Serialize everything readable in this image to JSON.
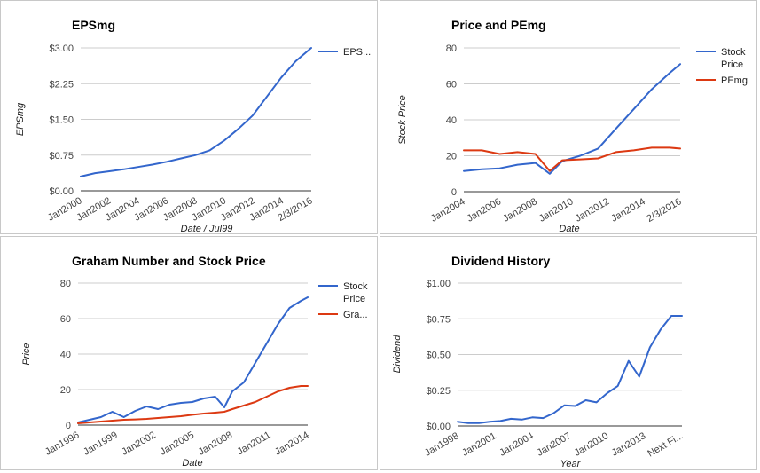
{
  "chart_data": [
    {
      "type": "line",
      "title": "EPSmg",
      "xlabel": "Date / Jul99",
      "ylabel": "EPSmg",
      "ylim": [
        0,
        3
      ],
      "xlim": [
        2000,
        2016.09
      ],
      "yticks": [
        "$0.00",
        "$0.75",
        "$1.50",
        "$2.25",
        "$3.00"
      ],
      "xticks": [
        "Jan2000",
        "Jan2002",
        "Jan2004",
        "Jan2006",
        "Jan2008",
        "Jan2010",
        "Jan2012",
        "Jan2014",
        "2/3/2016"
      ],
      "legend_position": "right",
      "grid": true,
      "series": [
        {
          "name": "EPS...",
          "color": "#3366cc",
          "x": [
            2000,
            2001,
            2002,
            2003,
            2004,
            2005,
            2006,
            2007,
            2008,
            2009,
            2010,
            2011,
            2012,
            2013,
            2014,
            2015,
            2016.09
          ],
          "y": [
            0.3,
            0.37,
            0.41,
            0.45,
            0.5,
            0.55,
            0.61,
            0.68,
            0.75,
            0.85,
            1.05,
            1.3,
            1.58,
            1.98,
            2.38,
            2.72,
            3.0
          ]
        }
      ]
    },
    {
      "type": "line",
      "title": "Price and PEmg",
      "xlabel": "Date",
      "ylabel": "Stock Price",
      "ylim": [
        0,
        80
      ],
      "xlim": [
        2004,
        2016.09
      ],
      "yticks": [
        "0",
        "20",
        "40",
        "60",
        "80"
      ],
      "xticks": [
        "Jan2004",
        "Jan2006",
        "Jan2008",
        "Jan2010",
        "Jan2012",
        "Jan2014",
        "2/3/2016"
      ],
      "legend_position": "right",
      "grid": true,
      "series": [
        {
          "name": "Stock Price",
          "color": "#3366cc",
          "x": [
            2004,
            2005,
            2006,
            2007,
            2008,
            2008.8,
            2009.5,
            2010.5,
            2011.5,
            2012.5,
            2013.5,
            2014.5,
            2015.5,
            2016.09
          ],
          "y": [
            11.5,
            12.5,
            13,
            15,
            16,
            10,
            17,
            20,
            24,
            35,
            46,
            57,
            66,
            71
          ]
        },
        {
          "name": "PEmg",
          "color": "#dc3912",
          "x": [
            2004,
            2005,
            2006,
            2007,
            2008,
            2008.8,
            2009.5,
            2010.5,
            2011.5,
            2012.5,
            2013.5,
            2014.5,
            2015.5,
            2016.09
          ],
          "y": [
            23,
            23,
            21,
            22,
            21,
            11.5,
            17.5,
            18,
            18.5,
            22,
            23,
            24.5,
            24.5,
            24
          ]
        }
      ]
    },
    {
      "type": "line",
      "title": "Graham Number and Stock Price",
      "xlabel": "Date",
      "ylabel": "Price",
      "ylim": [
        0,
        80
      ],
      "xlim": [
        1996,
        2016.09
      ],
      "yticks": [
        "0",
        "20",
        "40",
        "60",
        "80"
      ],
      "xticks": [
        "Jan1996",
        "Jan1999",
        "Jan2002",
        "Jan2005",
        "Jan2008",
        "Jan2011",
        "Jan2014"
      ],
      "legend_position": "right",
      "grid": true,
      "series": [
        {
          "name": "Stock Price",
          "color": "#3366cc",
          "x": [
            1996,
            1997,
            1998,
            1999,
            2000,
            2001,
            2002,
            2003,
            2004,
            2005,
            2006,
            2007,
            2008,
            2008.8,
            2009.5,
            2010.5,
            2011.5,
            2012.5,
            2013.5,
            2014.5,
            2015.5,
            2016.09
          ],
          "y": [
            1.5,
            3,
            4.5,
            7.5,
            4.5,
            8,
            10.5,
            9,
            11.5,
            12.5,
            13,
            15,
            16,
            10,
            19,
            24,
            35,
            46,
            57,
            66,
            70,
            72
          ]
        },
        {
          "name": "Gra...",
          "color": "#dc3912",
          "x": [
            1996,
            1997,
            1998,
            1999,
            2000,
            2001,
            2002,
            2003,
            2004,
            2005,
            2006,
            2007,
            2008,
            2008.8,
            2009.5,
            2010.5,
            2011.5,
            2012.5,
            2013.5,
            2014.5,
            2015.5,
            2016.09
          ],
          "y": [
            1,
            1.5,
            2,
            2.5,
            3,
            3.2,
            3.5,
            4,
            4.5,
            5,
            5.8,
            6.5,
            7,
            7.5,
            9,
            11,
            13,
            16,
            19,
            21,
            22,
            22
          ]
        }
      ]
    },
    {
      "type": "line",
      "title": "Dividend History",
      "xlabel": "Year",
      "ylabel": "Dividend",
      "ylim": [
        0,
        1
      ],
      "xlim": [
        1996,
        2017
      ],
      "yticks": [
        "$0.00",
        "$0.25",
        "$0.50",
        "$0.75",
        "$1.00"
      ],
      "xticks": [
        "Jan1998",
        "Jan2001",
        "Jan2004",
        "Jan2007",
        "Jan2010",
        "Jan2013",
        "Next Fi..."
      ],
      "legend_position": "none",
      "grid": true,
      "series": [
        {
          "name": "",
          "color": "#3366cc",
          "x": [
            1996,
            1997,
            1998,
            1999,
            2000,
            2001,
            2002,
            2003,
            2004,
            2005,
            2006,
            2007,
            2008,
            2009,
            2010,
            2011,
            2012,
            2013,
            2014,
            2015,
            2016,
            2017
          ],
          "y": [
            0.03,
            0.02,
            0.02,
            0.03,
            0.035,
            0.05,
            0.045,
            0.06,
            0.055,
            0.09,
            0.145,
            0.14,
            0.18,
            0.165,
            0.23,
            0.28,
            0.455,
            0.345,
            0.55,
            0.675,
            0.77,
            0.77
          ]
        }
      ]
    }
  ]
}
